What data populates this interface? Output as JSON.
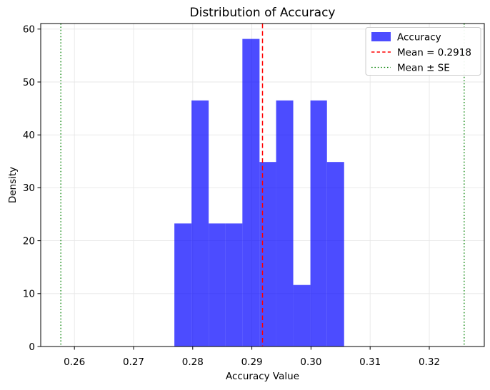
{
  "figure": {
    "background": "#ffffff"
  },
  "chart_data": {
    "type": "bar",
    "subtype": "histogram",
    "title": "Distribution of Accuracy",
    "xlabel": "Accuracy Value",
    "ylabel": "Density",
    "xlim": [
      0.2543,
      0.3293
    ],
    "ylim": [
      0,
      61.05
    ],
    "grid": true,
    "x_ticks": {
      "values": [
        0.26,
        0.27,
        0.28,
        0.29,
        0.3,
        0.31,
        0.32
      ],
      "labels": [
        "0.26",
        "0.27",
        "0.28",
        "0.29",
        "0.30",
        "0.31",
        "0.32"
      ]
    },
    "y_ticks": {
      "values": [
        0,
        10,
        20,
        30,
        40,
        50,
        60
      ],
      "labels": [
        "0",
        "10",
        "20",
        "30",
        "40",
        "50",
        "60"
      ]
    },
    "series": [
      {
        "name": "Accuracy",
        "color": "#0000ff",
        "opacity": 0.7,
        "bin_edges": [
          0.2769,
          0.2798,
          0.2827,
          0.2855,
          0.2884,
          0.2913,
          0.2941,
          0.297,
          0.2999,
          0.3027,
          0.3056
        ],
        "densities": [
          23.26,
          46.51,
          23.26,
          23.26,
          58.14,
          34.88,
          46.51,
          11.63,
          46.51,
          34.88
        ]
      }
    ],
    "vlines": [
      {
        "value": 0.2918,
        "color": "#ff0000",
        "style": "dashed",
        "name": "mean-line"
      },
      {
        "value": 0.2577,
        "color": "#008000",
        "style": "dotted",
        "name": "mean-minus-se-line"
      },
      {
        "value": 0.3259,
        "color": "#008000",
        "style": "dotted",
        "name": "mean-plus-se-line"
      }
    ],
    "legend": {
      "position": "upper right",
      "items": [
        {
          "handle": "patch",
          "color": "#0000ff",
          "opacity": 0.7,
          "label": "Accuracy"
        },
        {
          "handle": "dashed-line",
          "color": "#ff0000",
          "opacity": 1,
          "label": "Mean = 0.2918"
        },
        {
          "handle": "dotted-line",
          "color": "#008000",
          "opacity": 1,
          "label": "Mean ± SE"
        }
      ]
    },
    "colors": {
      "grid": "#e7e7e7",
      "spine": "#000000",
      "text": "#000000",
      "legend_border": "#cccccc",
      "legend_background": "#ffffff"
    }
  }
}
